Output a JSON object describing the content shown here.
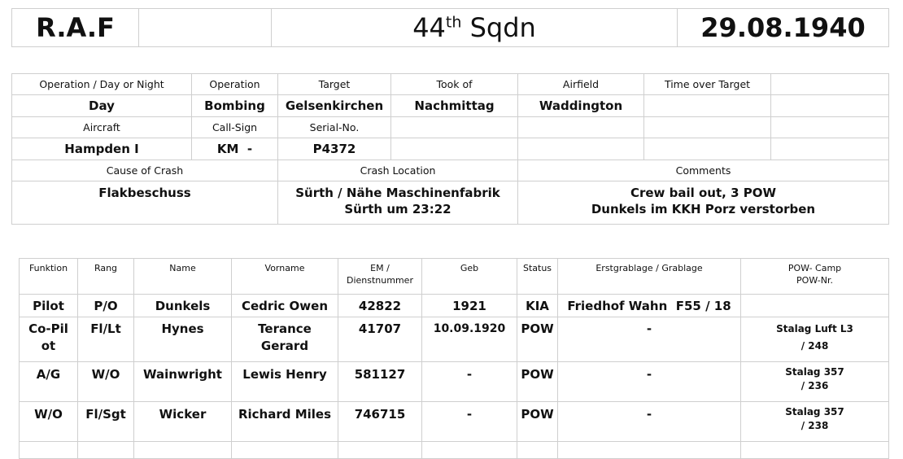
{
  "header": {
    "org": "R.A.F",
    "squadron_num": "44",
    "squadron_sup": "th",
    "squadron_unit": " Sqdn",
    "date": "29.08.1940"
  },
  "operation": {
    "labels": {
      "op_day_night": "Operation / Day or Night",
      "operation": "Operation",
      "target": "Target",
      "took_of": "Took of",
      "airfield": "Airfield",
      "time_over_target": "Time over Target",
      "aircraft": "Aircraft",
      "call_sign": "Call-Sign",
      "serial_no": "Serial-No.",
      "cause": "Cause of Crash",
      "location": "Crash Location",
      "comments": "Comments"
    },
    "values": {
      "op_day_night": "Day",
      "operation": "Bombing",
      "target": "Gelsenkirchen",
      "took_of": "Nachmittag",
      "airfield": "Waddington",
      "aircraft": "Hampden I",
      "call_sign": "KM  -",
      "serial_no": "P4372",
      "cause": "Flakbeschuss",
      "location_1": "Sürth / Nähe Maschinenfabrik",
      "location_2": "Sürth um 23:22",
      "comments_1": "Crew bail out, 3 POW",
      "comments_2": "Dunkels im KKH Porz verstorben"
    }
  },
  "crew": {
    "headers": [
      "Funktion",
      "Rang",
      "Name",
      "Vorname",
      "EM /",
      "Dienstnummer",
      "Geb",
      "Status",
      "Erstgrablage / Grablage",
      "POW- Camp",
      "POW-Nr."
    ],
    "rows": [
      {
        "funktion": "Pilot",
        "rang": "P/O",
        "name": "Dunkels",
        "vorname": "Cedric Owen",
        "em": "42822",
        "geb": "1921",
        "status": "KIA",
        "grab": "Friedhof Wahn  F55 / 18",
        "camp": ""
      },
      {
        "funktion": "Co-Pilot",
        "rang": "Fl/Lt",
        "name": "Hynes",
        "vorname": "Terance Gerard",
        "em": "41707",
        "geb": "10.09.1920",
        "status": "POW",
        "grab": "-",
        "camp": "Stalag Luft L3 / 248"
      },
      {
        "funktion": "A/G",
        "rang": "W/O",
        "name": "Wainwright",
        "vorname": "Lewis Henry",
        "em": "581127",
        "geb": "-",
        "status": "POW",
        "grab": "-",
        "camp": "Stalag 357 / 236"
      },
      {
        "funktion": "W/O",
        "rang": "Fl/Sgt",
        "name": "Wicker",
        "vorname": "Richard Miles",
        "em": "746715",
        "geb": "-",
        "status": "POW",
        "grab": "-",
        "camp": "Stalag 357 / 238"
      }
    ]
  }
}
